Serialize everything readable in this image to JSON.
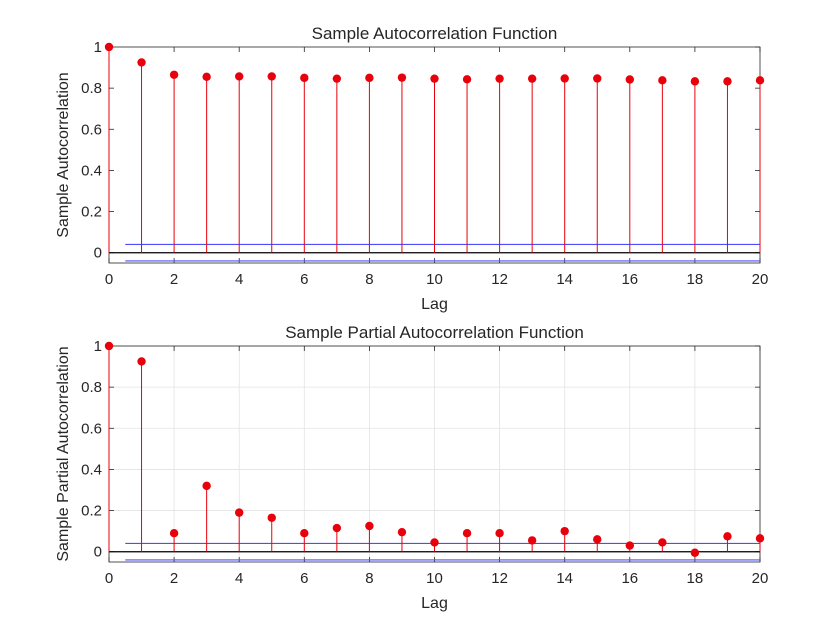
{
  "chart_data": [
    {
      "type": "stem",
      "title": "Sample Autocorrelation Function",
      "xlabel": "Lag",
      "ylabel": "Sample Autocorrelation",
      "xlim": [
        0,
        20
      ],
      "ylim": [
        -0.05,
        1
      ],
      "xticks": [
        "0",
        "2",
        "4",
        "6",
        "8",
        "10",
        "12",
        "14",
        "16",
        "18",
        "20"
      ],
      "yticks": [
        "0",
        "0.2",
        "0.4",
        "0.6",
        "0.8",
        "1"
      ],
      "grid": false,
      "x": [
        0,
        1,
        2,
        3,
        4,
        5,
        6,
        7,
        8,
        9,
        10,
        11,
        12,
        13,
        14,
        15,
        16,
        17,
        18,
        19,
        20
      ],
      "values": [
        1.0,
        0.925,
        0.865,
        0.855,
        0.857,
        0.857,
        0.85,
        0.846,
        0.85,
        0.851,
        0.846,
        0.843,
        0.846,
        0.846,
        0.847,
        0.847,
        0.842,
        0.838,
        0.833,
        0.833,
        0.838
      ],
      "confidence_bounds": [
        0.04,
        -0.04
      ],
      "stem_color": "#e8000b",
      "bound_color": "#4d4dff",
      "zero_line_color": "#000000"
    },
    {
      "type": "stem",
      "title": "Sample Partial Autocorrelation Function",
      "xlabel": "Lag",
      "ylabel": "Sample Partial Autocorrelation",
      "xlim": [
        0,
        20
      ],
      "ylim": [
        -0.05,
        1
      ],
      "xticks": [
        "0",
        "2",
        "4",
        "6",
        "8",
        "10",
        "12",
        "14",
        "16",
        "18",
        "20"
      ],
      "yticks": [
        "0",
        "0.2",
        "0.4",
        "0.6",
        "0.8",
        "1"
      ],
      "grid": true,
      "x": [
        0,
        1,
        2,
        3,
        4,
        5,
        6,
        7,
        8,
        9,
        10,
        11,
        12,
        13,
        14,
        15,
        16,
        17,
        18,
        19,
        20
      ],
      "values": [
        1.0,
        0.925,
        0.09,
        0.32,
        0.19,
        0.165,
        0.09,
        0.115,
        0.125,
        0.095,
        0.045,
        0.09,
        0.09,
        0.055,
        0.1,
        0.06,
        0.03,
        0.045,
        -0.005,
        0.075,
        0.065
      ],
      "confidence_bounds": [
        0.04,
        -0.04
      ],
      "stem_color": "#e8000b",
      "bound_color": "#4d4dff",
      "zero_line_color": "#000000"
    }
  ]
}
